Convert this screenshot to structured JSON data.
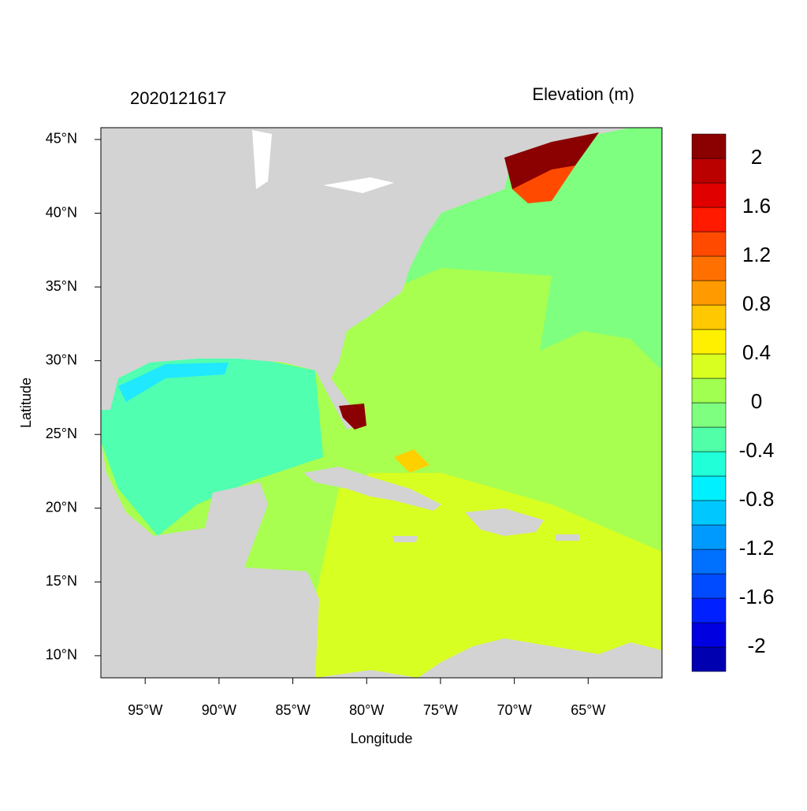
{
  "chart_data": {
    "type": "map",
    "title": "2020121617",
    "subtitle": "Elevation (m)",
    "x_label": "Longitude",
    "y_label": "Latitude",
    "xlim": [
      -98,
      -60
    ],
    "ylim": [
      8.5,
      45.8
    ],
    "xticks": [
      {
        "value": -95,
        "label": "95°W"
      },
      {
        "value": -90,
        "label": "90°W"
      },
      {
        "value": -85,
        "label": "85°W"
      },
      {
        "value": -80,
        "label": "80°W"
      },
      {
        "value": -75,
        "label": "75°W"
      },
      {
        "value": -70,
        "label": "70°W"
      },
      {
        "value": -65,
        "label": "65°W"
      }
    ],
    "yticks": [
      {
        "value": 10,
        "label": "10°N"
      },
      {
        "value": 15,
        "label": "15°N"
      },
      {
        "value": 20,
        "label": "20°N"
      },
      {
        "value": 25,
        "label": "25°N"
      },
      {
        "value": 30,
        "label": "30°N"
      },
      {
        "value": 35,
        "label": "35°N"
      },
      {
        "value": 40,
        "label": "40°N"
      },
      {
        "value": 45,
        "label": "45°N"
      }
    ],
    "colorbar": {
      "lim": [
        -2.2,
        2.2
      ],
      "colors": [
        "#0000b0",
        "#0000e0",
        "#0020ff",
        "#004aff",
        "#0070ff",
        "#009aff",
        "#00c8ff",
        "#00f0ff",
        "#20ffd8",
        "#50ffa8",
        "#7fff7f",
        "#a0ff50",
        "#d8ff20",
        "#fff000",
        "#ffc800",
        "#ff9a00",
        "#ff7000",
        "#ff4a00",
        "#ff1a00",
        "#e00000",
        "#bb0000",
        "#8b0000"
      ],
      "ticks": [
        -2,
        -1.6,
        -1.2,
        -0.8,
        -0.4,
        0,
        0.4,
        0.8,
        1.2,
        1.6,
        2
      ]
    }
  }
}
